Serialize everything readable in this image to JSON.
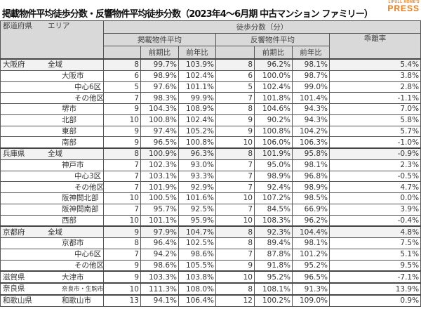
{
  "title": "掲載物件平均徒歩分数・反響物件平均徒歩分数（2023年4～6月期 中古マンション ファミリー）",
  "logo": {
    "top": "LIFULL HOME'S",
    "bottom": "PRESS",
    "color": "#f07a1a"
  },
  "header": {
    "pref": "都道府県",
    "area": "エリア",
    "group": "徒歩分数（分）",
    "listed": "掲載物件平均",
    "response": "反響物件平均",
    "gap": "乖離率",
    "qoq": "前期比",
    "yoy": "前年比"
  },
  "rows": [
    {
      "pref": "大阪府",
      "area": "全域",
      "level": 0,
      "v": [
        "8",
        "99.7%",
        "103.9%",
        "8",
        "96.2%",
        "98.1%",
        "5.4%"
      ]
    },
    {
      "pref": "",
      "area": "大阪市",
      "level": 1,
      "v": [
        "6",
        "98.9%",
        "102.4%",
        "6",
        "100.0%",
        "98.7%",
        "3.8%"
      ]
    },
    {
      "pref": "",
      "area": "中心6区",
      "level": 2,
      "v": [
        "5",
        "97.6%",
        "101.1%",
        "5",
        "102.4%",
        "99.0%",
        "2.8%"
      ]
    },
    {
      "pref": "",
      "area": "その他区",
      "level": 2,
      "v": [
        "7",
        "98.3%",
        "99.9%",
        "7",
        "101.8%",
        "101.4%",
        "-1.1%"
      ]
    },
    {
      "pref": "",
      "area": "堺市",
      "level": 1,
      "v": [
        "9",
        "104.3%",
        "108.9%",
        "8",
        "104.6%",
        "94.3%",
        "7.0%"
      ]
    },
    {
      "pref": "",
      "area": "北部",
      "level": 1,
      "v": [
        "10",
        "100.8%",
        "102.4%",
        "9",
        "90.2%",
        "94.3%",
        "5.8%"
      ]
    },
    {
      "pref": "",
      "area": "東部",
      "level": 1,
      "v": [
        "9",
        "97.4%",
        "105.2%",
        "9",
        "100.8%",
        "104.2%",
        "5.7%"
      ]
    },
    {
      "pref": "",
      "area": "南部",
      "level": 1,
      "v": [
        "9",
        "96.5%",
        "100.8%",
        "10",
        "106.0%",
        "106.3%",
        "-1.0%"
      ]
    },
    {
      "pref": "兵庫県",
      "area": "全域",
      "level": 0,
      "v": [
        "8",
        "100.9%",
        "96.3%",
        "8",
        "101.9%",
        "95.8%",
        "-0.9%"
      ]
    },
    {
      "pref": "",
      "area": "神戸市",
      "level": 1,
      "v": [
        "7",
        "102.3%",
        "93.0%",
        "7",
        "95.0%",
        "98.1%",
        "2.3%"
      ]
    },
    {
      "pref": "",
      "area": "中心3区",
      "level": 2,
      "v": [
        "7",
        "103.1%",
        "93.3%",
        "7",
        "98.9%",
        "96.8%",
        "-0.5%"
      ]
    },
    {
      "pref": "",
      "area": "その他区",
      "level": 2,
      "v": [
        "7",
        "101.9%",
        "92.9%",
        "7",
        "92.4%",
        "98.9%",
        "4.7%"
      ]
    },
    {
      "pref": "",
      "area": "阪神間北部",
      "level": 1,
      "v": [
        "10",
        "100.5%",
        "101.6%",
        "10",
        "107.2%",
        "98.5%",
        "0.0%"
      ]
    },
    {
      "pref": "",
      "area": "阪神間南部",
      "level": 1,
      "v": [
        "7",
        "95.7%",
        "92.5%",
        "7",
        "84.5%",
        "66.9%",
        "3.9%"
      ]
    },
    {
      "pref": "",
      "area": "西部",
      "level": 1,
      "v": [
        "10",
        "101.1%",
        "95.9%",
        "10",
        "108.3%",
        "96.2%",
        "-0.4%"
      ]
    },
    {
      "pref": "京都府",
      "area": "全域",
      "level": 0,
      "v": [
        "9",
        "97.9%",
        "104.7%",
        "8",
        "92.3%",
        "104.4%",
        "4.8%"
      ]
    },
    {
      "pref": "",
      "area": "京都市",
      "level": 1,
      "v": [
        "8",
        "96.4%",
        "102.5%",
        "8",
        "89.4%",
        "98.1%",
        "7.5%"
      ]
    },
    {
      "pref": "",
      "area": "中心6区",
      "level": 2,
      "v": [
        "7",
        "94.2%",
        "98.6%",
        "7",
        "87.8%",
        "101.2%",
        "5.1%"
      ]
    },
    {
      "pref": "",
      "area": "その他区",
      "level": 2,
      "v": [
        "9",
        "98.6%",
        "105.5%",
        "9",
        "91.8%",
        "95.2%",
        "9.5%"
      ]
    },
    {
      "pref": "滋賀県",
      "area": "大津市",
      "level": 1,
      "v": [
        "9",
        "103.3%",
        "103.8%",
        "10",
        "95.2%",
        "96.5%",
        "-7.1%"
      ]
    },
    {
      "pref": "奈良県",
      "area": "奈良市・生駒市",
      "level": 1,
      "small": true,
      "v": [
        "10",
        "111.3%",
        "108.0%",
        "8",
        "108.1%",
        "91.3%",
        "13.9%"
      ]
    },
    {
      "pref": "和歌山県",
      "area": "和歌山市",
      "level": 1,
      "v": [
        "13",
        "94.1%",
        "106.4%",
        "12",
        "100.2%",
        "109.0%",
        "0.9%"
      ]
    }
  ]
}
